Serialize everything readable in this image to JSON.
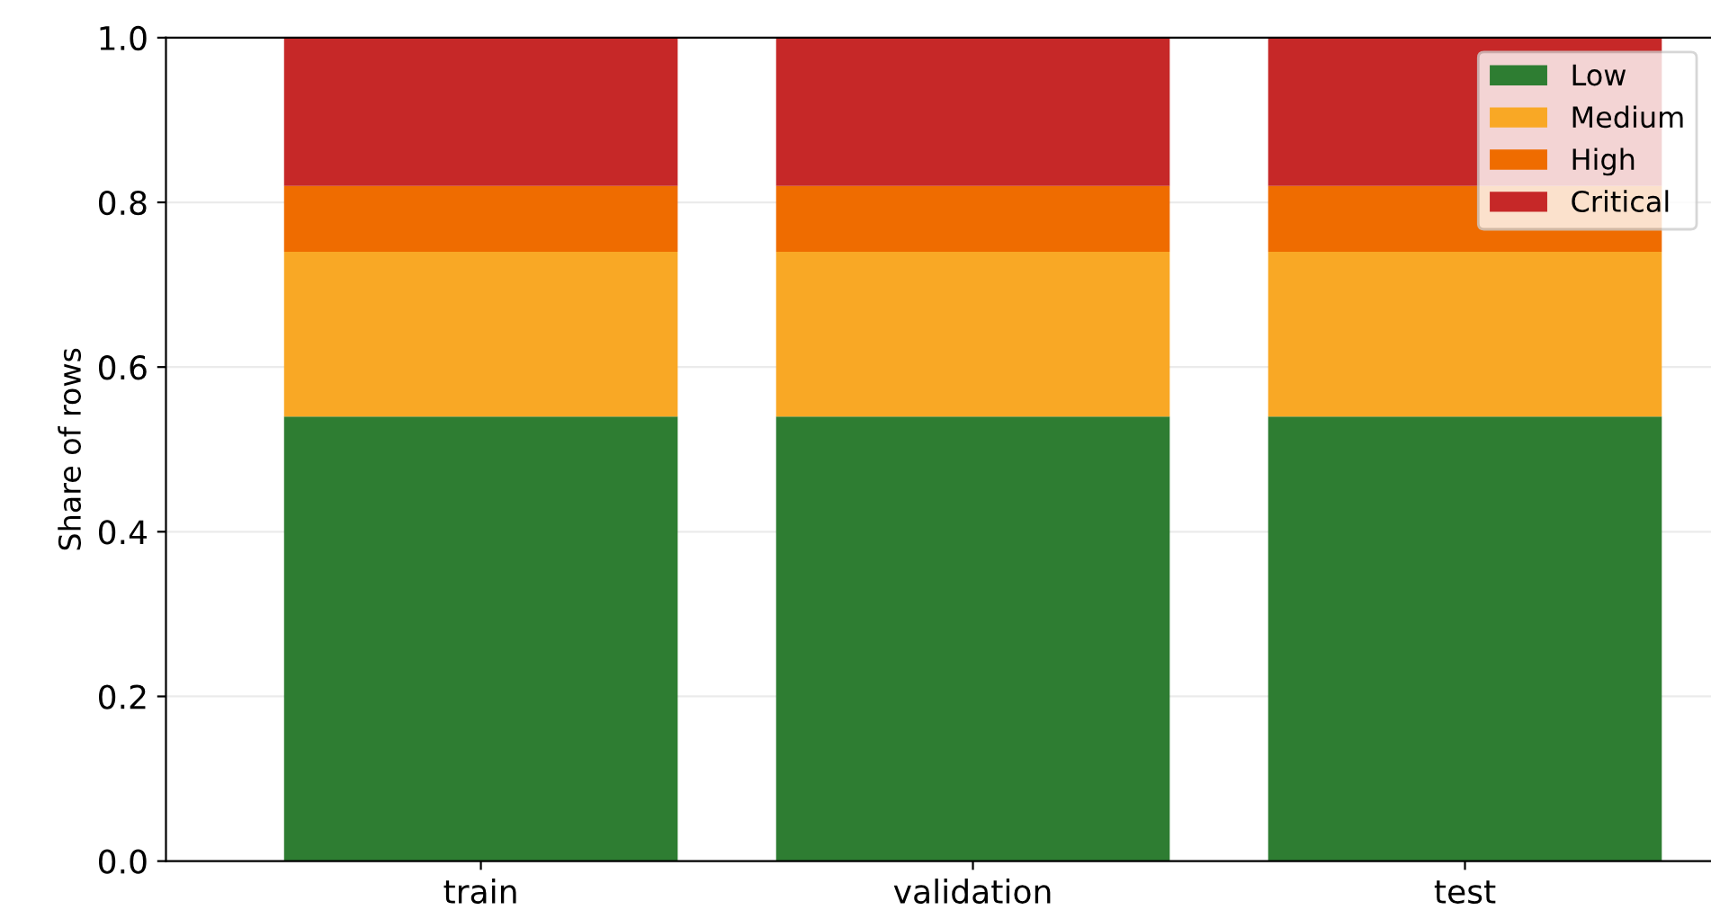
{
  "chart_data": {
    "type": "bar",
    "stacked": true,
    "ylabel": "Share of rows",
    "categories": [
      "train",
      "validation",
      "test"
    ],
    "series": [
      {
        "name": "Low",
        "color": "#2e7d32",
        "values": [
          0.54,
          0.54,
          0.54
        ]
      },
      {
        "name": "Medium",
        "color": "#f9a825",
        "values": [
          0.2,
          0.2,
          0.2
        ]
      },
      {
        "name": "High",
        "color": "#ef6c00",
        "values": [
          0.08,
          0.08,
          0.08
        ]
      },
      {
        "name": "Critical",
        "color": "#c62828",
        "values": [
          0.18,
          0.18,
          0.18
        ]
      }
    ],
    "ylim": [
      0,
      1.0
    ],
    "yticks": [
      {
        "value": 0,
        "label": "0.0"
      },
      0.2,
      0.4,
      0.6,
      0.8,
      {
        "value": 1.0,
        "label": "1.0"
      }
    ],
    "grid": "y",
    "legend": "top right"
  }
}
